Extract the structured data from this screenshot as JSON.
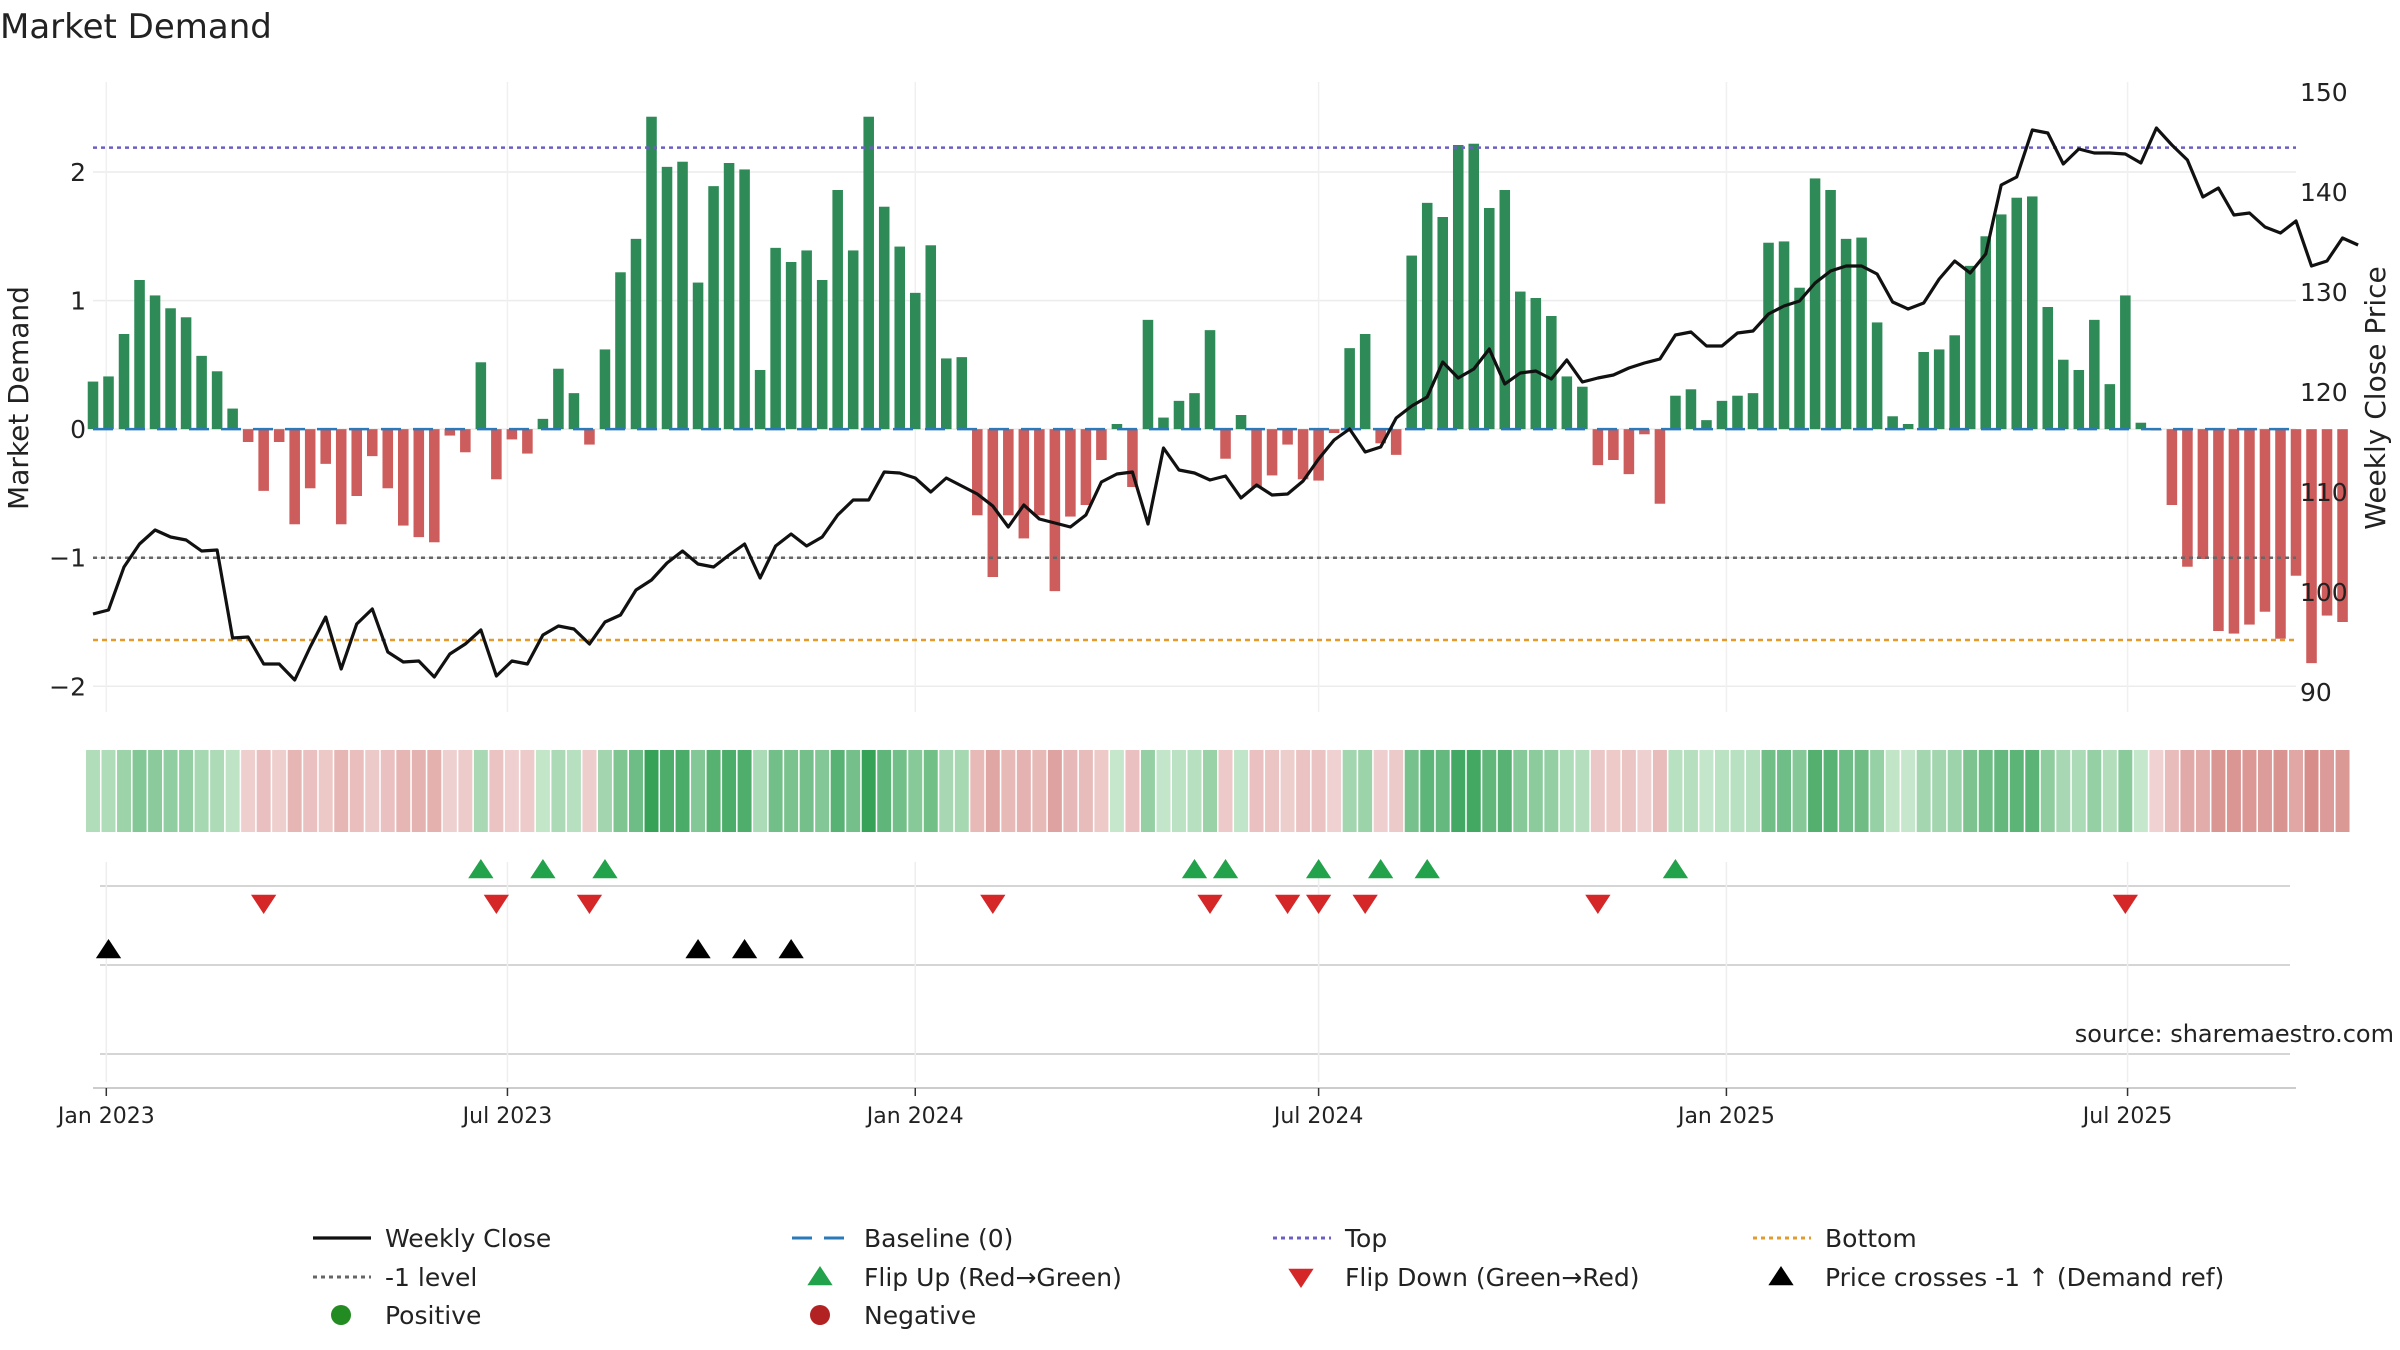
{
  "chart_data": {
    "type": "bar",
    "title": "Market Demand",
    "ylabel": "Market Demand",
    "y2label": "Weekly Close Price",
    "ylim": [
      -2.2,
      2.7
    ],
    "y2lim": [
      88,
      151
    ],
    "yticks": [
      -2,
      -1,
      0,
      1,
      2
    ],
    "y2ticks": [
      90,
      100,
      110,
      120,
      130,
      140,
      150
    ],
    "xlim": [
      "2022-12-26",
      "2025-09-15"
    ],
    "xticks": [
      {
        "date": "2023-01-01",
        "label": "Jan 2023"
      },
      {
        "date": "2023-07-01",
        "label": "Jul 2023"
      },
      {
        "date": "2024-01-01",
        "label": "Jan 2024"
      },
      {
        "date": "2024-07-01",
        "label": "Jul 2024"
      },
      {
        "date": "2025-01-01",
        "label": "Jan 2025"
      },
      {
        "date": "2025-07-01",
        "label": "Jul 2025"
      }
    ],
    "start_date": "2022-12-26",
    "interval_days": 7,
    "reference_lines": {
      "top": 2.19,
      "level_minus1": -1.0,
      "bottom": -1.64,
      "baseline": 0
    },
    "demand": [
      0.37,
      0.41,
      0.74,
      1.16,
      1.04,
      0.94,
      0.87,
      0.57,
      0.45,
      0.16,
      -0.1,
      -0.48,
      -0.1,
      -0.74,
      -0.46,
      -0.27,
      -0.74,
      -0.52,
      -0.21,
      -0.46,
      -0.75,
      -0.84,
      -0.88,
      -0.05,
      -0.18,
      0.52,
      -0.39,
      -0.08,
      -0.19,
      0.08,
      0.47,
      0.28,
      -0.12,
      0.62,
      1.22,
      1.48,
      2.43,
      2.04,
      2.08,
      1.14,
      1.89,
      2.07,
      2.02,
      0.46,
      1.41,
      1.3,
      1.39,
      1.16,
      1.86,
      1.39,
      2.43,
      1.73,
      1.42,
      1.06,
      1.43,
      0.55,
      0.56,
      -0.67,
      -1.15,
      -0.67,
      -0.85,
      -0.67,
      -1.26,
      -0.68,
      -0.59,
      -0.24,
      0.04,
      -0.45,
      0.85,
      0.09,
      0.22,
      0.28,
      0.77,
      -0.23,
      0.11,
      -0.45,
      -0.36,
      -0.12,
      -0.39,
      -0.4,
      -0.03,
      0.63,
      0.74,
      -0.11,
      -0.2,
      1.35,
      1.76,
      1.65,
      2.21,
      2.22,
      1.72,
      1.86,
      1.07,
      1.02,
      0.88,
      0.41,
      0.33,
      -0.28,
      -0.24,
      -0.35,
      -0.04,
      -0.58,
      0.26,
      0.31,
      0.07,
      0.22,
      0.26,
      0.28,
      1.45,
      1.46,
      1.1,
      1.95,
      1.86,
      1.48,
      1.49,
      0.83,
      0.1,
      0.04,
      0.6,
      0.62,
      0.73,
      1.27,
      1.5,
      1.67,
      1.8,
      1.81,
      0.95,
      0.54,
      0.46,
      0.85,
      0.35,
      1.04,
      0.05,
      -0.01,
      -0.59,
      -1.07,
      -1.01,
      -1.57,
      -1.59,
      -1.52,
      -1.42,
      -1.63,
      -1.14,
      -1.82,
      -1.45,
      -1.5
    ],
    "price": [
      97.8,
      98.2,
      102.5,
      104.8,
      106.2,
      105.5,
      105.2,
      104.1,
      104.2,
      95.4,
      95.5,
      92.8,
      92.8,
      91.2,
      94.5,
      97.5,
      92.3,
      96.8,
      98.3,
      94.0,
      93.0,
      93.1,
      91.5,
      93.8,
      94.8,
      96.2,
      91.6,
      93.1,
      92.8,
      95.7,
      96.6,
      96.3,
      94.8,
      97.0,
      97.7,
      100.2,
      101.2,
      102.9,
      104.1,
      102.8,
      102.5,
      103.7,
      104.8,
      101.4,
      104.6,
      105.8,
      104.6,
      105.5,
      107.7,
      109.2,
      109.2,
      112.0,
      111.9,
      111.4,
      110.0,
      111.4,
      110.6,
      109.8,
      108.6,
      106.5,
      108.7,
      107.3,
      106.9,
      106.5,
      107.7,
      111.0,
      111.8,
      112.0,
      106.8,
      114.4,
      112.2,
      111.9,
      111.2,
      111.6,
      109.4,
      110.7,
      109.7,
      109.8,
      111.1,
      113.3,
      115.2,
      116.3,
      114.0,
      114.5,
      117.4,
      118.6,
      119.5,
      123.0,
      121.4,
      122.3,
      124.3,
      120.8,
      121.9,
      122.1,
      121.3,
      123.2,
      121.0,
      121.4,
      121.7,
      122.4,
      122.9,
      123.3,
      125.7,
      126.0,
      124.6,
      124.6,
      125.9,
      126.1,
      127.8,
      128.6,
      129.1,
      130.9,
      132.1,
      132.6,
      132.6,
      131.8,
      129.0,
      128.3,
      128.9,
      131.3,
      133.1,
      131.9,
      133.8,
      140.7,
      141.5,
      146.2,
      145.9,
      142.8,
      144.3,
      143.9,
      143.9,
      143.8,
      142.9,
      146.4,
      144.7,
      143.2,
      139.5,
      140.4,
      137.7,
      137.9,
      136.5,
      135.9,
      137.1,
      132.6,
      133.1,
      135.4,
      134.7
    ],
    "flip_up": [
      "2023-06-19",
      "2023-07-17",
      "2023-08-14",
      "2024-05-06",
      "2024-05-20",
      "2024-07-01",
      "2024-07-29",
      "2024-08-19",
      "2024-12-09"
    ],
    "flip_down": [
      "2023-03-13",
      "2023-06-26",
      "2023-08-07",
      "2024-02-05",
      "2024-05-13",
      "2024-06-17",
      "2024-07-01",
      "2024-07-22",
      "2024-11-04",
      "2025-06-30"
    ],
    "price_cross": [
      "2023-01-02",
      "2023-09-25",
      "2023-10-16",
      "2023-11-06"
    ],
    "legend": [
      {
        "label": "Weekly Close",
        "kind": "solid",
        "color": "#111111"
      },
      {
        "label": "Baseline (0)",
        "kind": "dashed",
        "color": "#2a79b8"
      },
      {
        "label": "Top",
        "kind": "dotted",
        "color": "#6b5fc4"
      },
      {
        "label": "Bottom",
        "kind": "dotted",
        "color": "#e39b2d"
      },
      {
        "label": "-1 level",
        "kind": "dotted",
        "color": "#666666"
      },
      {
        "label": "Flip Up (Red→Green)",
        "kind": "tri-up",
        "color": "#22a24a"
      },
      {
        "label": "Flip Down (Green→Red)",
        "kind": "tri-down",
        "color": "#d62728"
      },
      {
        "label": "Price crosses -1 ↑ (Demand ref)",
        "kind": "tri-up",
        "color": "#000000"
      },
      {
        "label": "Positive",
        "kind": "circle",
        "color": "#228b22"
      },
      {
        "label": "Negative",
        "kind": "circle",
        "color": "#b22222"
      }
    ],
    "annotation": "source: sharemaestro.com",
    "colors": {
      "positive": "#2e8b57",
      "negative": "#cd5c5c"
    }
  }
}
